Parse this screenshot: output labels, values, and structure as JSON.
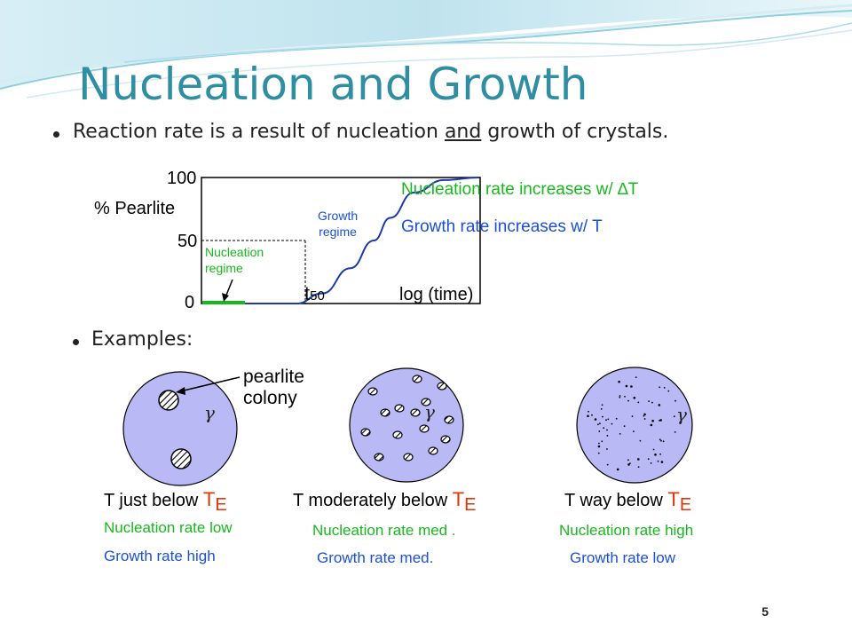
{
  "slide": {
    "title": "Nucleation and Growth",
    "bullet1": {
      "pre": "Reaction rate is a result of nucleation ",
      "underlined": "and",
      "post": " growth of crystals."
    },
    "bullet2": "Examples:",
    "page_number": "5"
  },
  "chart": {
    "ylabel": "% Pearlite",
    "xlabel": "log (time)",
    "ytick_100": "100",
    "ytick_50": "50",
    "ytick_0": "0",
    "t50_main": "t",
    "t50_sub": "50",
    "growth_label_1": "Growth",
    "growth_label_2": "regime",
    "nucleation_label_1": "Nucleation",
    "nucleation_label_2": "regime",
    "note_nucleation": "Nucleation rate increases w/ ∆T",
    "note_growth": "Growth rate increases w/  T"
  },
  "chart_data": {
    "type": "line",
    "xlabel": "log (time)",
    "ylabel": "% Pearlite",
    "ylim": [
      0,
      100
    ],
    "y_ticks": [
      "0",
      "50",
      "100"
    ],
    "series": [
      {
        "shape": "sigmoid",
        "x": [
          0,
          0.22,
          0.33,
          0.45,
          0.55,
          0.62,
          0.72,
          0.85,
          1.0
        ],
        "y": [
          0,
          0,
          8,
          28,
          50,
          68,
          88,
          98,
          100
        ]
      }
    ],
    "markers": {
      "t50": "t50"
    },
    "colors": {
      "curve": "#1c3aa9",
      "nucleation": "#17b81c"
    }
  },
  "examples": {
    "pearlite_label_1": "pearlite",
    "pearlite_label_2": "colony",
    "gamma": "γ",
    "cases": [
      {
        "temp": "T just below ",
        "te_main": "T",
        "te_sub": "E",
        "nucleation": "Nucleation rate low",
        "growth": "Growth rate high"
      },
      {
        "temp": "T moderately below ",
        "te_main": "T",
        "te_sub": "E",
        "nucleation": "Nucleation rate med .",
        "growth": "Growth rate med."
      },
      {
        "temp": "T way below ",
        "te_main": "T",
        "te_sub": "E",
        "nucleation": "Nucleation rate high",
        "growth": "Growth rate low"
      }
    ]
  },
  "colors": {
    "title": "#2f8ea2",
    "circle_fill": "#b9b9f5",
    "nucleation_text": "#17b81c",
    "growth_text": "#1a4fd6",
    "te_text": "#e0340a"
  }
}
